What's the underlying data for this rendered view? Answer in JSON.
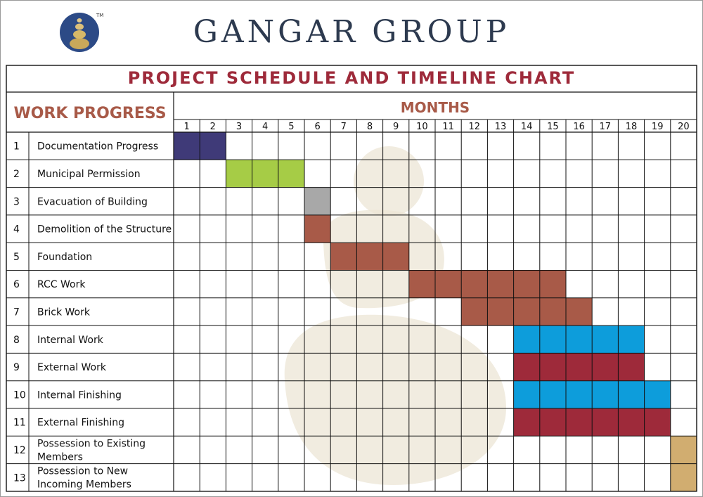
{
  "header": {
    "brand": "GANGAR GROUP",
    "trademark": "TM"
  },
  "chart_data": {
    "type": "table",
    "title": "PROJECT SCHEDULE AND TIMELINE CHART",
    "row_header": "WORK PROGRESS",
    "column_header": "MONTHS",
    "months": [
      "1",
      "2",
      "3",
      "4",
      "5",
      "6",
      "7",
      "8",
      "9",
      "10",
      "11",
      "12",
      "13",
      "14",
      "15",
      "16",
      "17",
      "18",
      "19",
      "20"
    ],
    "tasks": [
      {
        "no": "1",
        "lines": [
          "Documentation Progress"
        ],
        "start": 1,
        "end": 2,
        "color": "#3f3a78"
      },
      {
        "no": "2",
        "lines": [
          "Municipal Permission"
        ],
        "start": 3,
        "end": 5,
        "color": "#a6cc46"
      },
      {
        "no": "3",
        "lines": [
          "Evacuation of Building"
        ],
        "start": 6,
        "end": 6,
        "color": "#a8a8a8"
      },
      {
        "no": "4",
        "lines": [
          "Demolition of the Structure"
        ],
        "start": 6,
        "end": 6,
        "color": "#a85a48"
      },
      {
        "no": "5",
        "lines": [
          "Foundation"
        ],
        "start": 7,
        "end": 9,
        "color": "#a85a48"
      },
      {
        "no": "6",
        "lines": [
          "RCC Work"
        ],
        "start": 10,
        "end": 15,
        "color": "#a85a48"
      },
      {
        "no": "7",
        "lines": [
          "Brick Work"
        ],
        "start": 12,
        "end": 16,
        "color": "#a85a48"
      },
      {
        "no": "8",
        "lines": [
          "Internal Work"
        ],
        "start": 14,
        "end": 18,
        "color": "#0d9ddb"
      },
      {
        "no": "9",
        "lines": [
          "External Work"
        ],
        "start": 14,
        "end": 18,
        "color": "#9e2a3a"
      },
      {
        "no": "10",
        "lines": [
          "Internal Finishing"
        ],
        "start": 14,
        "end": 19,
        "color": "#0d9ddb"
      },
      {
        "no": "11",
        "lines": [
          "External Finishing"
        ],
        "start": 14,
        "end": 19,
        "color": "#9e2a3a"
      },
      {
        "no": "12",
        "lines": [
          "Possession to Existing",
          "Members"
        ],
        "start": 20,
        "end": 20,
        "color": "#d1ad70"
      },
      {
        "no": "13",
        "lines": [
          "Possession to New",
          "Incoming Members"
        ],
        "start": 20,
        "end": 20,
        "color": "#d1ad70"
      }
    ],
    "colors": {
      "title": "#9e2a3a",
      "headers": "#a85a48",
      "grid": "#111111",
      "watermark": "#ece5d6"
    }
  }
}
